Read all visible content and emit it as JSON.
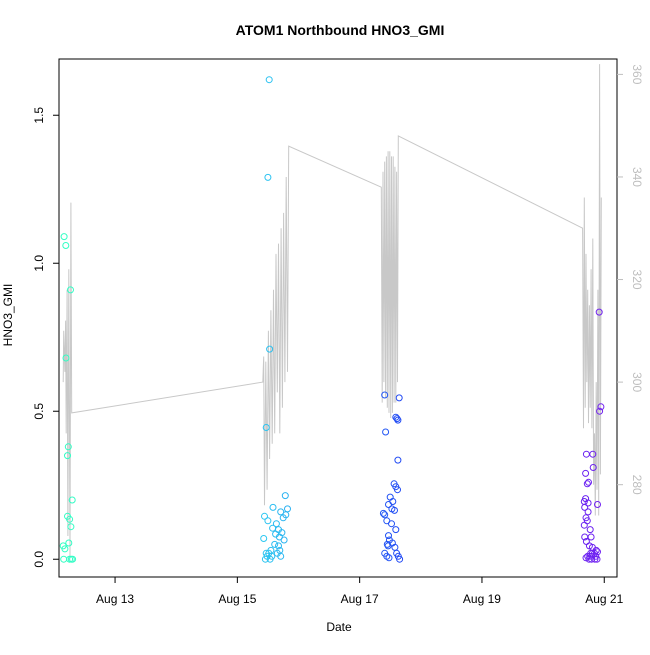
{
  "chart_data": {
    "type": "scatter",
    "title": "ATOM1 Northbound HNO3_GMI",
    "xlabel": "Date",
    "ylabel": "HNO3_GMI",
    "xlim": [
      "2016-08-12 02:00",
      "2016-08-21 05:00"
    ],
    "ylim": [
      -0.06,
      1.69
    ],
    "y2lim": [
      262,
      363
    ],
    "x_ticks": [
      {
        "t": "2016-08-13 00:00",
        "label": "Aug 13"
      },
      {
        "t": "2016-08-15 00:00",
        "label": "Aug 15"
      },
      {
        "t": "2016-08-17 00:00",
        "label": "Aug 17"
      },
      {
        "t": "2016-08-19 00:00",
        "label": "Aug 19"
      },
      {
        "t": "2016-08-21 00:00",
        "label": "Aug 21"
      }
    ],
    "y_ticks": [
      {
        "value": 0.0,
        "label": "0.0"
      },
      {
        "value": 0.5,
        "label": "0.5"
      },
      {
        "value": 1.0,
        "label": "1.0"
      },
      {
        "value": 1.5,
        "label": "1.5"
      }
    ],
    "y2_ticks": [
      {
        "value": 280,
        "label": "280"
      },
      {
        "value": 300,
        "label": "300"
      },
      {
        "value": 320,
        "label": "320"
      },
      {
        "value": 340,
        "label": "340"
      },
      {
        "value": 360,
        "label": "360"
      }
    ],
    "grid": false,
    "colors": {
      "line": "#c8c8c8",
      "axis": "#000000",
      "right_axis": "#bebebe"
    },
    "series": [
      {
        "type": "scatter",
        "color_gradient": [
          "#33ffc2",
          "#2ed8f0",
          "#1e2cf5",
          "#7a20f0"
        ],
        "points": [
          {
            "t": "2016-08-12 04:00",
            "y": 1.09
          },
          {
            "t": "2016-08-12 04:40",
            "y": 1.06
          },
          {
            "t": "2016-08-12 04:45",
            "y": 0.68
          },
          {
            "t": "2016-08-12 05:40",
            "y": 0.38
          },
          {
            "t": "2016-08-12 05:20",
            "y": 0.35
          },
          {
            "t": "2016-08-12 06:30",
            "y": 0.91
          },
          {
            "t": "2016-08-12 07:10",
            "y": 0.2
          },
          {
            "t": "2016-08-12 05:20",
            "y": 0.145
          },
          {
            "t": "2016-08-12 06:10",
            "y": 0.135
          },
          {
            "t": "2016-08-12 06:40",
            "y": 0.11
          },
          {
            "t": "2016-08-12 03:40",
            "y": 0.045
          },
          {
            "t": "2016-08-12 04:20",
            "y": 0.035
          },
          {
            "t": "2016-08-12 05:50",
            "y": 0.055
          },
          {
            "t": "2016-08-12 03:50",
            "y": 0.0
          },
          {
            "t": "2016-08-12 06:10",
            "y": 0.0
          },
          {
            "t": "2016-08-12 06:50",
            "y": 0.0
          },
          {
            "t": "2016-08-12 07:20",
            "y": 0.0
          },
          {
            "t": "2016-08-15 12:30",
            "y": 1.62
          },
          {
            "t": "2016-08-15 12:00",
            "y": 1.29
          },
          {
            "t": "2016-08-15 12:40",
            "y": 0.71
          },
          {
            "t": "2016-08-15 11:20",
            "y": 0.445
          },
          {
            "t": "2016-08-15 18:50",
            "y": 0.215
          },
          {
            "t": "2016-08-15 14:00",
            "y": 0.175
          },
          {
            "t": "2016-08-15 19:40",
            "y": 0.17
          },
          {
            "t": "2016-08-15 17:00",
            "y": 0.16
          },
          {
            "t": "2016-08-15 10:40",
            "y": 0.145
          },
          {
            "t": "2016-08-15 19:00",
            "y": 0.15
          },
          {
            "t": "2016-08-15 12:00",
            "y": 0.13
          },
          {
            "t": "2016-08-15 15:20",
            "y": 0.12
          },
          {
            "t": "2016-08-15 18:00",
            "y": 0.14
          },
          {
            "t": "2016-08-15 13:50",
            "y": 0.105
          },
          {
            "t": "2016-08-15 16:10",
            "y": 0.1
          },
          {
            "t": "2016-08-15 17:30",
            "y": 0.09
          },
          {
            "t": "2016-08-15 15:00",
            "y": 0.085
          },
          {
            "t": "2016-08-15 16:30",
            "y": 0.075
          },
          {
            "t": "2016-08-15 10:20",
            "y": 0.07
          },
          {
            "t": "2016-08-15 18:20",
            "y": 0.065
          },
          {
            "t": "2016-08-15 14:40",
            "y": 0.05
          },
          {
            "t": "2016-08-15 16:10",
            "y": 0.045
          },
          {
            "t": "2016-08-15 13:10",
            "y": 0.03
          },
          {
            "t": "2016-08-15 16:40",
            "y": 0.03
          },
          {
            "t": "2016-08-15 11:20",
            "y": 0.02
          },
          {
            "t": "2016-08-15 12:20",
            "y": 0.02
          },
          {
            "t": "2016-08-15 15:40",
            "y": 0.02
          },
          {
            "t": "2016-08-15 11:40",
            "y": 0.01
          },
          {
            "t": "2016-08-15 13:30",
            "y": 0.01
          },
          {
            "t": "2016-08-15 17:00",
            "y": 0.01
          },
          {
            "t": "2016-08-15 11:00",
            "y": 0.0
          },
          {
            "t": "2016-08-15 12:50",
            "y": 0.0
          },
          {
            "t": "2016-08-17 09:50",
            "y": 0.555
          },
          {
            "t": "2016-08-17 15:30",
            "y": 0.545
          },
          {
            "t": "2016-08-17 14:10",
            "y": 0.48
          },
          {
            "t": "2016-08-17 14:40",
            "y": 0.475
          },
          {
            "t": "2016-08-17 15:00",
            "y": 0.47
          },
          {
            "t": "2016-08-17 10:10",
            "y": 0.43
          },
          {
            "t": "2016-08-17 15:00",
            "y": 0.335
          },
          {
            "t": "2016-08-17 13:30",
            "y": 0.255
          },
          {
            "t": "2016-08-17 14:10",
            "y": 0.245
          },
          {
            "t": "2016-08-17 14:50",
            "y": 0.235
          },
          {
            "t": "2016-08-17 12:00",
            "y": 0.21
          },
          {
            "t": "2016-08-17 13:00",
            "y": 0.195
          },
          {
            "t": "2016-08-17 11:20",
            "y": 0.185
          },
          {
            "t": "2016-08-17 12:40",
            "y": 0.17
          },
          {
            "t": "2016-08-17 13:40",
            "y": 0.165
          },
          {
            "t": "2016-08-17 09:20",
            "y": 0.155
          },
          {
            "t": "2016-08-17 09:50",
            "y": 0.15
          },
          {
            "t": "2016-08-17 10:40",
            "y": 0.13
          },
          {
            "t": "2016-08-17 12:30",
            "y": 0.12
          },
          {
            "t": "2016-08-17 14:10",
            "y": 0.1
          },
          {
            "t": "2016-08-17 11:20",
            "y": 0.08
          },
          {
            "t": "2016-08-17 11:40",
            "y": 0.065
          },
          {
            "t": "2016-08-17 12:50",
            "y": 0.055
          },
          {
            "t": "2016-08-17 10:50",
            "y": 0.05
          },
          {
            "t": "2016-08-17 11:10",
            "y": 0.045
          },
          {
            "t": "2016-08-17 13:50",
            "y": 0.04
          },
          {
            "t": "2016-08-17 09:50",
            "y": 0.02
          },
          {
            "t": "2016-08-17 14:30",
            "y": 0.02
          },
          {
            "t": "2016-08-17 10:40",
            "y": 0.01
          },
          {
            "t": "2016-08-17 15:10",
            "y": 0.01
          },
          {
            "t": "2016-08-17 11:30",
            "y": 0.005
          },
          {
            "t": "2016-08-17 15:40",
            "y": 0.0
          },
          {
            "t": "2016-08-20 17:00",
            "y": 0.355
          },
          {
            "t": "2016-08-20 19:30",
            "y": 0.355
          },
          {
            "t": "2016-08-20 16:40",
            "y": 0.29
          },
          {
            "t": "2016-08-20 19:40",
            "y": 0.31
          },
          {
            "t": "2016-08-20 17:50",
            "y": 0.26
          },
          {
            "t": "2016-08-20 17:20",
            "y": 0.255
          },
          {
            "t": "2016-08-20 16:10",
            "y": 0.195
          },
          {
            "t": "2016-08-20 16:40",
            "y": 0.205
          },
          {
            "t": "2016-08-20 17:40",
            "y": 0.19
          },
          {
            "t": "2016-08-20 16:20",
            "y": 0.175
          },
          {
            "t": "2016-08-20 17:40",
            "y": 0.16
          },
          {
            "t": "2016-08-20 16:50",
            "y": 0.14
          },
          {
            "t": "2016-08-20 17:20",
            "y": 0.13
          },
          {
            "t": "2016-08-20 16:10",
            "y": 0.115
          },
          {
            "t": "2016-08-20 18:30",
            "y": 0.1
          },
          {
            "t": "2016-08-20 16:20",
            "y": 0.075
          },
          {
            "t": "2016-08-20 18:50",
            "y": 0.075
          },
          {
            "t": "2016-08-20 17:00",
            "y": 0.06
          },
          {
            "t": "2016-08-20 18:10",
            "y": 0.045
          },
          {
            "t": "2016-08-20 19:20",
            "y": 0.04
          },
          {
            "t": "2016-08-20 20:50",
            "y": 0.03
          },
          {
            "t": "2016-08-20 21:20",
            "y": 0.025
          },
          {
            "t": "2016-08-20 18:40",
            "y": 0.02
          },
          {
            "t": "2016-08-20 19:20",
            "y": 0.02
          },
          {
            "t": "2016-08-20 20:10",
            "y": 0.02
          },
          {
            "t": "2016-08-20 17:30",
            "y": 0.01
          },
          {
            "t": "2016-08-20 18:20",
            "y": 0.01
          },
          {
            "t": "2016-08-20 19:10",
            "y": 0.01
          },
          {
            "t": "2016-08-20 20:40",
            "y": 0.01
          },
          {
            "t": "2016-08-20 16:50",
            "y": 0.005
          },
          {
            "t": "2016-08-20 18:00",
            "y": 0.0
          },
          {
            "t": "2016-08-20 19:00",
            "y": 0.0
          },
          {
            "t": "2016-08-20 20:20",
            "y": 0.0
          },
          {
            "t": "2016-08-20 21:10",
            "y": 0.0
          },
          {
            "t": "2016-08-20 22:00",
            "y": 0.835
          },
          {
            "t": "2016-08-20 22:10",
            "y": 0.5
          },
          {
            "t": "2016-08-20 22:40",
            "y": 0.515
          },
          {
            "t": "2016-08-20 21:20",
            "y": 0.185
          }
        ]
      },
      {
        "type": "line",
        "axis": "right",
        "color": "#c8c8c8",
        "points": [
          {
            "t": "2016-08-12 03:40",
            "y2": 300
          },
          {
            "t": "2016-08-12 03:50",
            "y2": 310
          },
          {
            "t": "2016-08-12 04:20",
            "y2": 302
          },
          {
            "t": "2016-08-12 04:35",
            "y2": 312
          },
          {
            "t": "2016-08-12 04:50",
            "y2": 290
          },
          {
            "t": "2016-08-12 05:10",
            "y2": 318
          },
          {
            "t": "2016-08-12 05:30",
            "y2": 270
          },
          {
            "t": "2016-08-12 05:50",
            "y2": 322
          },
          {
            "t": "2016-08-12 06:20",
            "y2": 266
          },
          {
            "t": "2016-08-12 06:40",
            "y2": 335
          },
          {
            "t": "2016-08-12 07:00",
            "y2": 294
          },
          {
            "t": "2016-08-15 10:00",
            "y2": 300
          },
          {
            "t": "2016-08-15 10:20",
            "y2": 305
          },
          {
            "t": "2016-08-15 10:40",
            "y2": 276
          },
          {
            "t": "2016-08-15 11:10",
            "y2": 304
          },
          {
            "t": "2016-08-15 11:40",
            "y2": 279
          },
          {
            "t": "2016-08-15 12:10",
            "y2": 310
          },
          {
            "t": "2016-08-15 12:40",
            "y2": 285
          },
          {
            "t": "2016-08-15 13:10",
            "y2": 314
          },
          {
            "t": "2016-08-15 13:40",
            "y2": 288
          },
          {
            "t": "2016-08-15 14:10",
            "y2": 318
          },
          {
            "t": "2016-08-15 14:40",
            "y2": 290
          },
          {
            "t": "2016-08-15 15:10",
            "y2": 325
          },
          {
            "t": "2016-08-15 15:40",
            "y2": 298
          },
          {
            "t": "2016-08-15 16:10",
            "y2": 327
          },
          {
            "t": "2016-08-15 16:40",
            "y2": 290
          },
          {
            "t": "2016-08-15 17:10",
            "y2": 330
          },
          {
            "t": "2016-08-15 17:40",
            "y2": 295
          },
          {
            "t": "2016-08-15 18:10",
            "y2": 333
          },
          {
            "t": "2016-08-15 18:40",
            "y2": 300
          },
          {
            "t": "2016-08-15 19:10",
            "y2": 340
          },
          {
            "t": "2016-08-15 19:40",
            "y2": 302
          },
          {
            "t": "2016-08-15 20:10",
            "y2": 346
          },
          {
            "t": "2016-08-17 08:30",
            "y2": 338
          },
          {
            "t": "2016-08-17 08:50",
            "y2": 296
          },
          {
            "t": "2016-08-17 09:10",
            "y2": 341
          },
          {
            "t": "2016-08-17 09:30",
            "y2": 300
          },
          {
            "t": "2016-08-17 09:50",
            "y2": 343
          },
          {
            "t": "2016-08-17 10:10",
            "y2": 297
          },
          {
            "t": "2016-08-17 10:30",
            "y2": 344
          },
          {
            "t": "2016-08-17 10:50",
            "y2": 295
          },
          {
            "t": "2016-08-17 11:10",
            "y2": 345
          },
          {
            "t": "2016-08-17 11:30",
            "y2": 294
          },
          {
            "t": "2016-08-17 11:50",
            "y2": 345
          },
          {
            "t": "2016-08-17 12:10",
            "y2": 293
          },
          {
            "t": "2016-08-17 12:30",
            "y2": 344
          },
          {
            "t": "2016-08-17 12:50",
            "y2": 294
          },
          {
            "t": "2016-08-17 13:10",
            "y2": 344
          },
          {
            "t": "2016-08-17 13:30",
            "y2": 296
          },
          {
            "t": "2016-08-17 13:50",
            "y2": 342
          },
          {
            "t": "2016-08-17 14:10",
            "y2": 296
          },
          {
            "t": "2016-08-17 14:30",
            "y2": 341
          },
          {
            "t": "2016-08-17 14:50",
            "y2": 300
          },
          {
            "t": "2016-08-17 15:10",
            "y2": 348
          },
          {
            "t": "2016-08-20 15:30",
            "y2": 330
          },
          {
            "t": "2016-08-20 15:50",
            "y2": 291
          },
          {
            "t": "2016-08-20 16:10",
            "y2": 336
          },
          {
            "t": "2016-08-20 16:30",
            "y2": 295
          },
          {
            "t": "2016-08-20 16:50",
            "y2": 325
          },
          {
            "t": "2016-08-20 17:10",
            "y2": 300
          },
          {
            "t": "2016-08-20 17:30",
            "y2": 318
          },
          {
            "t": "2016-08-20 17:50",
            "y2": 292
          },
          {
            "t": "2016-08-20 18:10",
            "y2": 315
          },
          {
            "t": "2016-08-20 18:30",
            "y2": 295
          },
          {
            "t": "2016-08-20 18:50",
            "y2": 322
          },
          {
            "t": "2016-08-20 19:10",
            "y2": 291
          },
          {
            "t": "2016-08-20 19:30",
            "y2": 328
          },
          {
            "t": "2016-08-20 19:50",
            "y2": 280
          },
          {
            "t": "2016-08-20 20:10",
            "y2": 290
          },
          {
            "t": "2016-08-20 20:30",
            "y2": 274
          },
          {
            "t": "2016-08-20 20:50",
            "y2": 300
          },
          {
            "t": "2016-08-20 21:10",
            "y2": 279
          },
          {
            "t": "2016-08-20 21:30",
            "y2": 318
          },
          {
            "t": "2016-08-20 21:50",
            "y2": 274
          },
          {
            "t": "2016-08-20 22:10",
            "y2": 362
          },
          {
            "t": "2016-08-20 22:30",
            "y2": 282
          },
          {
            "t": "2016-08-20 22:50",
            "y2": 336
          }
        ]
      }
    ]
  }
}
